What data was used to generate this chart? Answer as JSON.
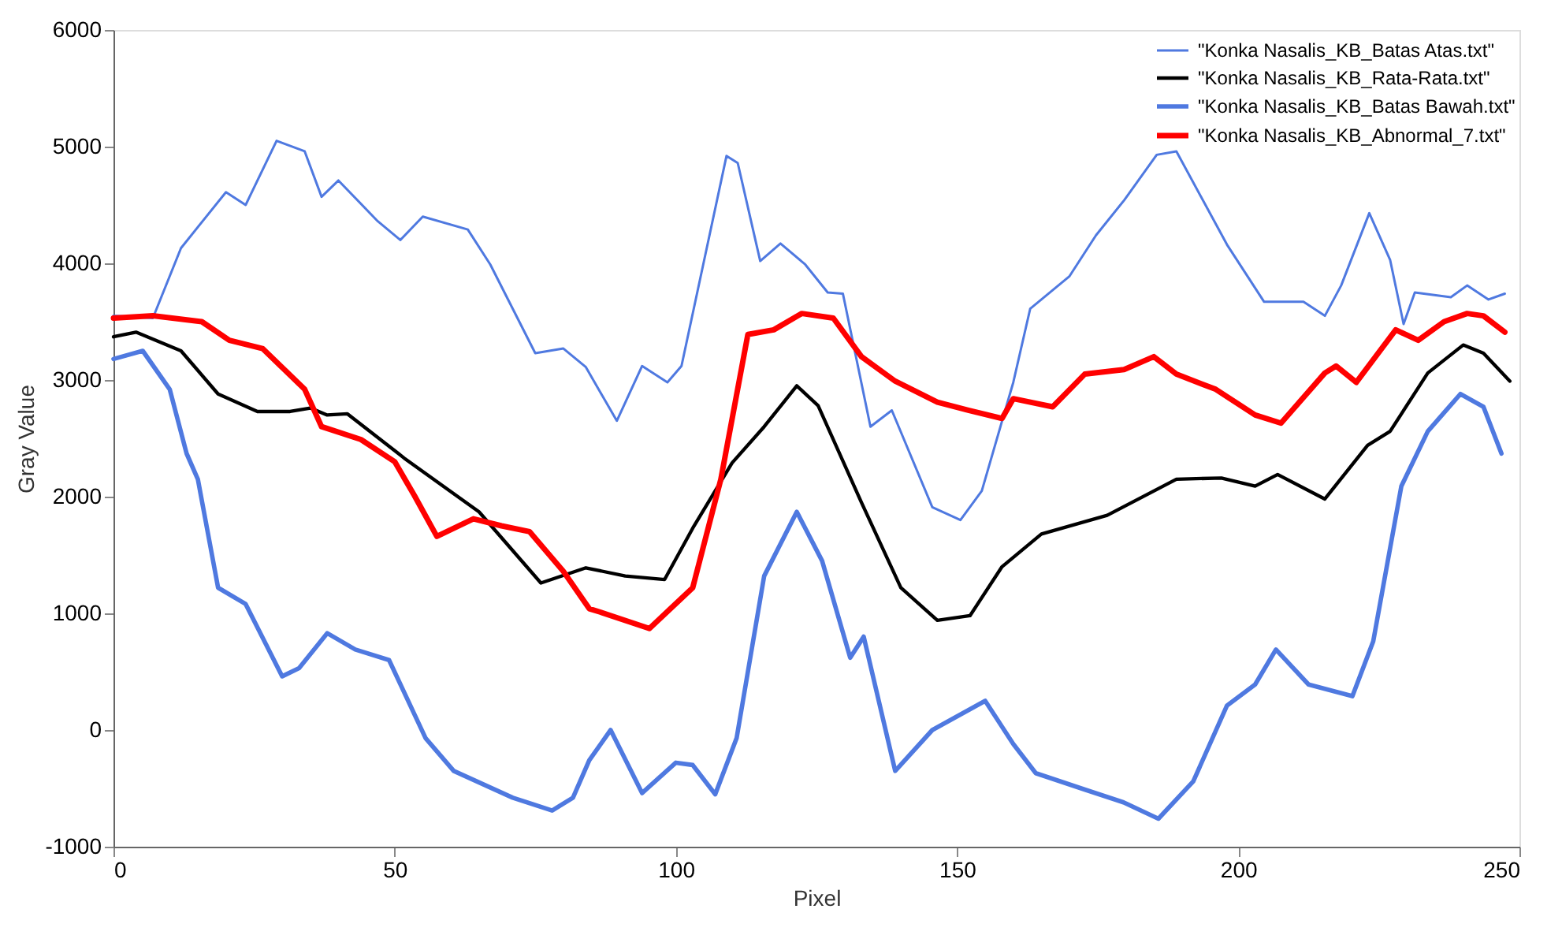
{
  "chart_data": {
    "type": "line",
    "xlabel": "Pixel",
    "ylabel": "Gray Value",
    "xlim": [
      0,
      250
    ],
    "xticks": [
      0,
      50,
      100,
      150,
      200,
      250
    ],
    "ylim": [
      -1000,
      6000
    ],
    "yticks": [
      -1000,
      0,
      1000,
      2000,
      3000,
      4000,
      5000,
      6000
    ],
    "grid": false,
    "legend": "top right",
    "marker": "none",
    "line_style": "solid",
    "series": [
      {
        "name": "\"Konka Nasalis_KB_Batas Atas.txt\"",
        "color": "#4f79e0",
        "x": [
          0,
          7,
          12,
          20,
          23.5,
          29,
          34,
          37,
          40,
          47,
          51,
          55,
          63,
          67,
          75,
          80,
          84,
          89.5,
          94,
          98.5,
          101,
          109,
          111,
          115,
          118.6,
          123,
          127,
          129.7,
          134.6,
          138.4,
          145.6,
          150.6,
          154.4,
          160,
          163,
          170,
          174.7,
          179.7,
          185.5,
          189,
          198,
          204.6,
          211.6,
          215.4,
          218.3,
          223.3,
          227,
          229.4,
          231.4,
          237.8,
          240.7,
          244.5,
          247.4
        ],
        "values": [
          3550,
          3530,
          4130,
          4610,
          4500,
          5050,
          4960,
          4570,
          4710,
          4360,
          4200,
          4400,
          4290,
          3990,
          3230,
          3270,
          3110,
          2650,
          3120,
          2980,
          3120,
          4920,
          4860,
          4020,
          4170,
          3990,
          3750,
          3740,
          2600,
          2740,
          1910,
          1800,
          2050,
          2980,
          3610,
          3890,
          4240,
          4540,
          4930,
          4960,
          4160,
          3670,
          3670,
          3550,
          3810,
          4430,
          4030,
          3480,
          3750,
          3710,
          3810,
          3690,
          3740
        ]
      },
      {
        "name": "\"Konka Nasalis_KB_Rata-Rata.txt\"",
        "color": "#000000",
        "x": [
          0,
          4,
          12,
          18.6,
          25.6,
          31.4,
          35,
          38,
          41.6,
          51.7,
          65,
          76,
          84,
          91,
          98,
          103,
          110,
          115.7,
          121.5,
          125.3,
          133,
          140,
          146.5,
          152.3,
          158,
          165,
          176.7,
          189,
          197,
          203,
          207,
          215.4,
          223,
          227,
          233.7,
          240,
          243.6,
          248.3
        ],
        "values": [
          3370,
          3410,
          3250,
          2880,
          2730,
          2730,
          2760,
          2700,
          2710,
          2330,
          1870,
          1260,
          1390,
          1320,
          1290,
          1730,
          2290,
          2600,
          2950,
          2780,
          1950,
          1220,
          940,
          980,
          1400,
          1680,
          1840,
          2150,
          2160,
          2090,
          2190,
          1980,
          2440,
          2560,
          3060,
          3300,
          3230,
          2990
        ]
      },
      {
        "name": "\"Konka Nasalis_KB_Batas Bawah.txt\"",
        "color": "#4f79e0",
        "x": [
          0,
          5.2,
          10,
          13,
          15,
          18.6,
          23.5,
          30,
          33,
          38,
          43,
          49,
          55.5,
          60.5,
          71,
          78,
          81.7,
          84.6,
          88.4,
          94,
          100,
          103,
          107,
          110.8,
          115.7,
          121.5,
          126,
          131,
          133.4,
          139,
          145.6,
          155,
          160,
          164,
          172.7,
          179.6,
          185.8,
          192,
          198,
          203,
          206.7,
          212.5,
          220.3,
          224,
          229,
          233.7,
          239.5,
          243.6,
          246.8
        ],
        "values": [
          3180,
          3250,
          2920,
          2370,
          2150,
          1220,
          1080,
          460,
          530,
          830,
          690,
          600,
          -70,
          -350,
          -580,
          -690,
          -580,
          -260,
          0,
          -540,
          -280,
          -300,
          -550,
          -70,
          1320,
          1870,
          1450,
          620,
          800,
          -350,
          0,
          250,
          -120,
          -370,
          -510,
          -620,
          -760,
          -440,
          210,
          390,
          690,
          390,
          290,
          760,
          2090,
          2560,
          2880,
          2770,
          2370
        ]
      },
      {
        "name": "\"Konka Nasalis_KB_Abnormal_7.txt\"",
        "color": "#ff0000",
        "x": [
          0,
          7,
          15.7,
          20.6,
          26.5,
          34,
          37,
          44,
          50,
          53.5,
          57.5,
          64,
          69,
          74,
          80,
          84.6,
          86.6,
          95.3,
          103,
          108,
          112.8,
          117.4,
          122.4,
          128,
          133,
          139,
          146.5,
          152,
          158,
          160,
          167,
          172.7,
          179.7,
          185,
          189,
          196,
          203,
          207.6,
          215.4,
          217.4,
          221,
          228,
          232,
          236.6,
          240.7,
          243.6,
          247.4
        ],
        "values": [
          3530,
          3550,
          3500,
          3340,
          3270,
          2920,
          2600,
          2490,
          2300,
          2010,
          1660,
          1810,
          1750,
          1700,
          1360,
          1040,
          1010,
          870,
          1220,
          2150,
          3390,
          3430,
          3570,
          3530,
          3200,
          2990,
          2810,
          2740,
          2670,
          2840,
          2770,
          3050,
          3090,
          3200,
          3050,
          2920,
          2700,
          2630,
          3060,
          3120,
          2980,
          3430,
          3340,
          3500,
          3570,
          3550,
          3410
        ]
      }
    ]
  }
}
